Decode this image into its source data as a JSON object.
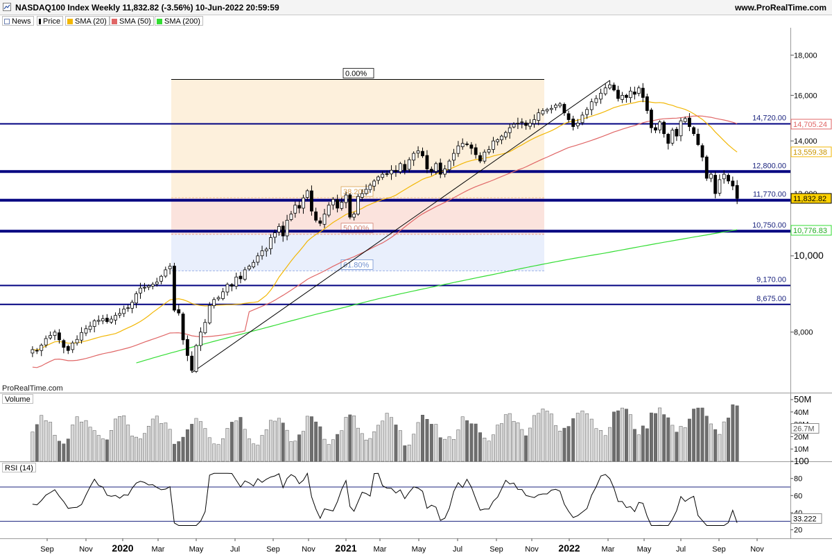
{
  "header": {
    "title": "NASDAQ100 Index Weekly 11,832.82 (-3.56%) 10-Jun-2022 20:59:59",
    "site": "www.ProRealTime.com"
  },
  "legend": {
    "news": "News",
    "price": "Price",
    "sma20": "SMA (20)",
    "sma50": "SMA (50)",
    "sma200": "SMA (200)"
  },
  "watermark": "ProRealTime.com",
  "panels": {
    "volume_label": "Volume",
    "rsi_label": "RSI (14)"
  },
  "colors": {
    "up": "#ffffff",
    "down": "#000000",
    "sma20": "#f2b705",
    "sma50": "#e06666",
    "sma200": "#33dd33",
    "hline": "#000080",
    "fib_top": "#fdf0dc",
    "fib_mid": "#fbe3dd",
    "fib_low": "#e9effc"
  },
  "chart_data": [
    {
      "type": "candlestick",
      "title": "NASDAQ100 Index Weekly",
      "scale": "log",
      "ylim": [
        6700,
        19500
      ],
      "y_ticks": [
        8000,
        10000,
        12000,
        14000,
        16000,
        18000
      ],
      "y_tick_labels": [
        "8,000",
        "10,000",
        "12,000",
        "14,000",
        "16,000",
        "18,000"
      ],
      "x_tick_labels": [
        "Sep",
        "Nov",
        "2020",
        "Mar",
        "May",
        "Jul",
        "Sep",
        "Nov",
        "2021",
        "Mar",
        "May",
        "Jul",
        "Sep",
        "Nov",
        "2022",
        "Mar",
        "May",
        "Jul",
        "Sep",
        "Nov"
      ],
      "x_tick_dates": [
        "2019-09-01",
        "2019-11-01",
        "2020-01-01",
        "2020-03-01",
        "2020-05-01",
        "2020-07-01",
        "2020-09-01",
        "2020-11-01",
        "2021-01-01",
        "2021-03-01",
        "2021-05-01",
        "2021-07-01",
        "2021-09-01",
        "2021-11-01",
        "2022-01-01",
        "2022-03-01",
        "2022-05-01",
        "2022-07-01",
        "2022-09-01",
        "2022-11-01"
      ],
      "series": [
        {
          "name": "Price",
          "note": "weekly closes, Aug 2019 – 10 Jun 2022",
          "start": "2019-08-09",
          "values": [
            7600,
            7580,
            7700,
            7850,
            7920,
            8000,
            7820,
            7650,
            7580,
            7750,
            7830,
            7990,
            8080,
            8140,
            8270,
            8280,
            8320,
            8250,
            8310,
            8400,
            8450,
            8560,
            8590,
            8730,
            8950,
            9100,
            9120,
            9160,
            9200,
            9260,
            9420,
            9600,
            9700,
            8530,
            8460,
            7820,
            7470,
            7150,
            7690,
            8000,
            8230,
            8650,
            8800,
            8850,
            9000,
            9200,
            9150,
            9400,
            9350,
            9600,
            9700,
            9810,
            10000,
            10150,
            10200,
            10550,
            10700,
            10900,
            10600,
            11100,
            11300,
            11600,
            11500,
            11850,
            12100,
            11400,
            11100,
            11000,
            11300,
            11600,
            11800,
            11500,
            11700,
            11950,
            11200,
            11300,
            11900,
            12000,
            12150,
            12300,
            12450,
            12600,
            12700,
            12700,
            12850,
            12800,
            13100,
            12850,
            13250,
            13500,
            13600,
            13400,
            12900,
            12800,
            13100,
            12700,
            12900,
            13200,
            13500,
            13800,
            13900,
            13850,
            13700,
            13450,
            13200,
            13550,
            13650,
            14000,
            14050,
            14200,
            14350,
            14550,
            14700,
            14750,
            14800,
            14650,
            14750,
            14900,
            15200,
            15300,
            15350,
            15400,
            15550,
            15600,
            15200,
            14900,
            14600,
            14750,
            15100,
            15350,
            15700,
            15850,
            16100,
            16350,
            16500,
            16250,
            15850,
            16000,
            15900,
            16200,
            16050,
            16350,
            15900,
            15300,
            14550,
            14450,
            14800,
            14300,
            13900,
            14450,
            14200,
            14850,
            14950,
            14600,
            14300,
            13850,
            13350,
            12550,
            12700,
            12000,
            12500,
            12700,
            12450,
            12270,
            11832
          ]
        },
        {
          "name": "SMA (20)",
          "last": "13,559.38"
        },
        {
          "name": "SMA (50)",
          "last": "14,705.24"
        },
        {
          "name": "SMA (200)",
          "last": "10,776.83"
        }
      ],
      "horizontal_levels": [
        {
          "value": 14720,
          "label": "14,720.00"
        },
        {
          "value": 12800,
          "label": "12,800.00"
        },
        {
          "value": 11770,
          "label": "11,770.00"
        },
        {
          "value": 10750,
          "label": "10,750.00"
        },
        {
          "value": 9170,
          "label": "9,170.00"
        },
        {
          "value": 8675,
          "label": "8,675.00"
        }
      ],
      "fibonacci": {
        "high": 16760,
        "low": 6770,
        "levels": [
          "0.00%",
          "38.20%",
          "50.00%",
          "61.80%"
        ]
      },
      "price_tag": "11,832.82"
    },
    {
      "type": "bar",
      "title": "Volume",
      "y_tick_labels": [
        "50M",
        "40M",
        "30M",
        "20M",
        "10M"
      ],
      "y_ticks": [
        50,
        40,
        30,
        20,
        10
      ],
      "ylim": [
        0,
        50
      ],
      "last": "26.7M"
    },
    {
      "type": "line",
      "title": "RSI (14)",
      "ylim": [
        10,
        100
      ],
      "y_ticks": [
        100,
        80,
        60,
        40,
        20
      ],
      "reference_lines": [
        70,
        30
      ],
      "last": "33.222"
    }
  ]
}
